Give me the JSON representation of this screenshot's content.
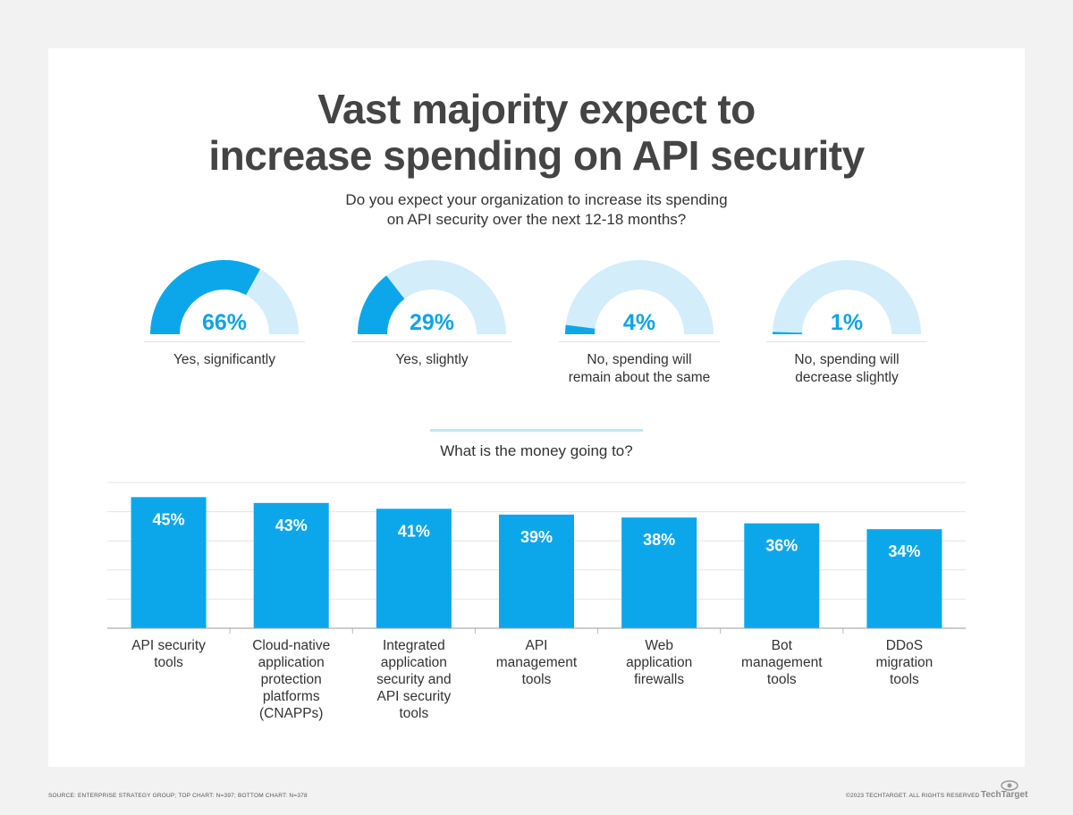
{
  "header": {
    "title_line1": "Vast majority expect to",
    "title_line2": "increase spending on API security",
    "question_line1": "Do you expect your organization to increase its spending",
    "question_line2": "on API security over the next 12-18 months?"
  },
  "colors": {
    "accent": "#0ca7ea",
    "light": "#d4edfa",
    "text": "#3d3d3d"
  },
  "chart_data": [
    {
      "type": "gauge",
      "title": "Do you expect your organization to increase its spending on API security over the next 12-18 months?",
      "items": [
        {
          "value": 66,
          "pct_label": "66%",
          "label_lines": [
            "Yes, significantly"
          ]
        },
        {
          "value": 29,
          "pct_label": "29%",
          "label_lines": [
            "Yes, slightly"
          ]
        },
        {
          "value": 4,
          "pct_label": "4%",
          "label_lines": [
            "No, spending will",
            "remain about the same"
          ]
        },
        {
          "value": 1,
          "pct_label": "1%",
          "label_lines": [
            "No, spending will",
            "decrease slightly"
          ]
        }
      ]
    },
    {
      "type": "bar",
      "title": "What is the money going to?",
      "categories": [
        [
          "API security",
          "tools"
        ],
        [
          "Cloud-native",
          "application",
          "protection",
          "platforms",
          "(CNAPPs)"
        ],
        [
          "Integrated",
          "application",
          "security and",
          "API security",
          "tools"
        ],
        [
          "API",
          "management",
          "tools"
        ],
        [
          "Web",
          "application",
          "firewalls"
        ],
        [
          "Bot",
          "management",
          "tools"
        ],
        [
          "DDoS",
          "migration",
          "tools"
        ]
      ],
      "values": [
        45,
        43,
        41,
        39,
        38,
        36,
        34
      ],
      "value_labels": [
        "45%",
        "43%",
        "41%",
        "39%",
        "38%",
        "36%",
        "34%"
      ],
      "ylim": [
        0,
        50
      ],
      "grid": true
    }
  ],
  "footer": {
    "source": "SOURCE: ENTERPRISE STRATEGY GROUP; TOP CHART: N=397; BOTTOM CHART: N=378",
    "copyright": "©2023 TECHTARGET. ALL RIGHTS RESERVED",
    "logo_text": "TechTarget"
  }
}
